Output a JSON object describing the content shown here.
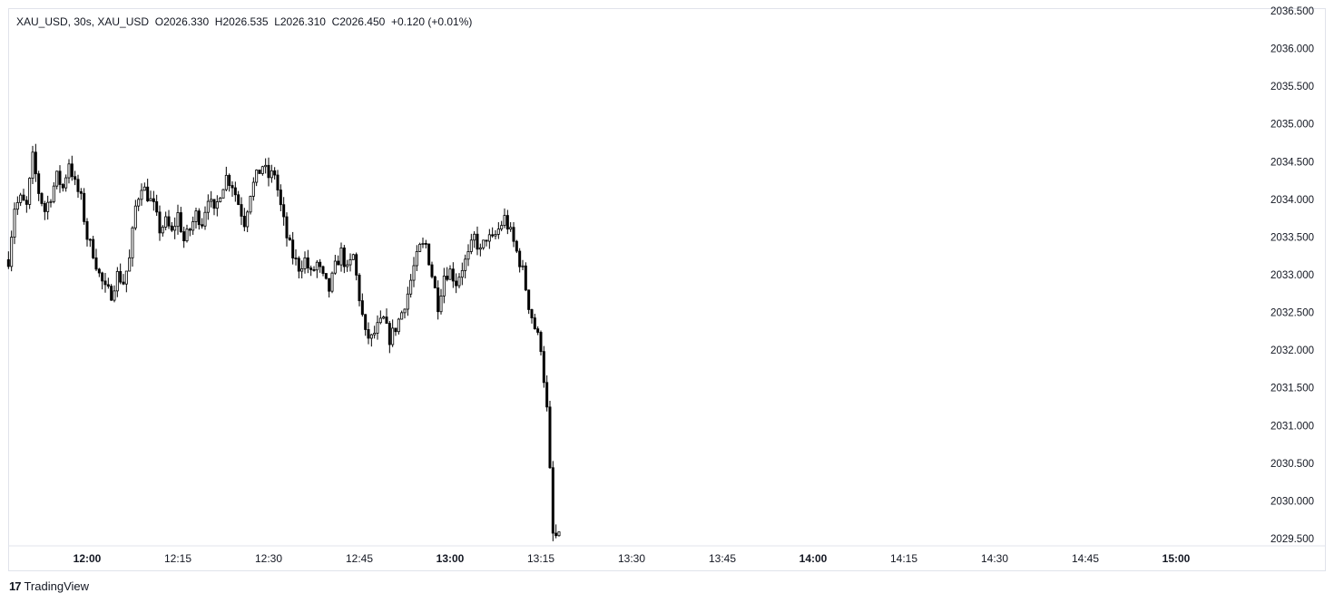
{
  "legend": {
    "symbol": "XAU_USD, 30s, XAU_USD",
    "open": "O2026.330",
    "high": "H2026.535",
    "low": "L2026.310",
    "close": "C2026.450",
    "change": "+0.120 (+0.01%)"
  },
  "brand": {
    "logo": "17",
    "name": "TradingView"
  },
  "chart_data": {
    "type": "candlestick",
    "symbol": "XAU_USD",
    "interval": "30s",
    "price_ticks": [
      "2036.500",
      "2036.000",
      "2035.500",
      "2035.000",
      "2034.500",
      "2034.000",
      "2033.500",
      "2033.000",
      "2032.500",
      "2032.000",
      "2031.500",
      "2031.000",
      "2030.500",
      "2030.000",
      "2029.500"
    ],
    "time_ticks": [
      {
        "label": "12:00",
        "bold": true
      },
      {
        "label": "12:15",
        "bold": false
      },
      {
        "label": "12:30",
        "bold": false
      },
      {
        "label": "12:45",
        "bold": false
      },
      {
        "label": "13:00",
        "bold": true
      },
      {
        "label": "13:15",
        "bold": false
      },
      {
        "label": "13:30",
        "bold": false
      },
      {
        "label": "13:45",
        "bold": false
      },
      {
        "label": "14:00",
        "bold": true
      },
      {
        "label": "14:15",
        "bold": false
      },
      {
        "label": "14:30",
        "bold": false
      },
      {
        "label": "14:45",
        "bold": false
      },
      {
        "label": "15:00",
        "bold": true
      }
    ],
    "ylim": [
      2029.4,
      2036.6
    ],
    "x_start": "11:47",
    "x_end": "15:16",
    "price_path": [
      [
        "11:47",
        2033.2
      ],
      [
        "11:48",
        2033.9
      ],
      [
        "11:49",
        2034.0
      ],
      [
        "11:50",
        2033.9
      ],
      [
        "11:51",
        2034.55
      ],
      [
        "11:52",
        2034.1
      ],
      [
        "11:53",
        2033.85
      ],
      [
        "11:54",
        2034.05
      ],
      [
        "11:55",
        2034.3
      ],
      [
        "11:56",
        2034.15
      ],
      [
        "11:57",
        2034.5
      ],
      [
        "11:58",
        2034.2
      ],
      [
        "11:59",
        2034.0
      ],
      [
        "12:00",
        2033.5
      ],
      [
        "12:01",
        2033.3
      ],
      [
        "12:02",
        2033.0
      ],
      [
        "12:03",
        2032.8
      ],
      [
        "12:04",
        2032.75
      ],
      [
        "12:05",
        2033.0
      ],
      [
        "12:06",
        2032.9
      ],
      [
        "12:07",
        2033.2
      ],
      [
        "12:08",
        2033.9
      ],
      [
        "12:09",
        2034.2
      ],
      [
        "12:10",
        2034.05
      ],
      [
        "12:11",
        2033.9
      ],
      [
        "12:12",
        2033.6
      ],
      [
        "12:13",
        2033.7
      ],
      [
        "12:14",
        2033.55
      ],
      [
        "12:15",
        2033.8
      ],
      [
        "12:16",
        2033.45
      ],
      [
        "12:17",
        2033.6
      ],
      [
        "12:18",
        2033.8
      ],
      [
        "12:19",
        2033.7
      ],
      [
        "12:20",
        2034.05
      ],
      [
        "12:21",
        2033.8
      ],
      [
        "12:22",
        2034.1
      ],
      [
        "12:23",
        2034.3
      ],
      [
        "12:24",
        2034.2
      ],
      [
        "12:25",
        2033.95
      ],
      [
        "12:26",
        2033.7
      ],
      [
        "12:27",
        2034.1
      ],
      [
        "12:28",
        2034.3
      ],
      [
        "12:29",
        2034.45
      ],
      [
        "12:30",
        2034.3
      ],
      [
        "12:31",
        2034.35
      ],
      [
        "12:32",
        2033.9
      ],
      [
        "12:33",
        2033.5
      ],
      [
        "12:34",
        2033.25
      ],
      [
        "12:35",
        2033.1
      ],
      [
        "12:36",
        2033.2
      ],
      [
        "12:37",
        2033.0
      ],
      [
        "12:38",
        2033.15
      ],
      [
        "12:39",
        2032.95
      ],
      [
        "12:40",
        2032.8
      ],
      [
        "12:41",
        2033.1
      ],
      [
        "12:42",
        2033.3
      ],
      [
        "12:43",
        2033.05
      ],
      [
        "12:44",
        2033.25
      ],
      [
        "12:45",
        2032.7
      ],
      [
        "12:46",
        2032.2
      ],
      [
        "12:47",
        2032.15
      ],
      [
        "12:48",
        2032.3
      ],
      [
        "12:49",
        2032.4
      ],
      [
        "12:50",
        2032.15
      ],
      [
        "12:51",
        2032.3
      ],
      [
        "12:52",
        2032.5
      ],
      [
        "12:53",
        2032.75
      ],
      [
        "12:54",
        2033.1
      ],
      [
        "12:55",
        2033.35
      ],
      [
        "12:56",
        2033.4
      ],
      [
        "12:57",
        2033.0
      ],
      [
        "12:58",
        2032.6
      ],
      [
        "12:59",
        2033.0
      ],
      [
        "13:00",
        2033.05
      ],
      [
        "13:01",
        2032.9
      ],
      [
        "13:02",
        2033.1
      ],
      [
        "13:03",
        2033.25
      ],
      [
        "13:04",
        2033.5
      ],
      [
        "13:05",
        2033.3
      ],
      [
        "13:06",
        2033.5
      ],
      [
        "13:07",
        2033.45
      ],
      [
        "13:08",
        2033.6
      ],
      [
        "13:09",
        2033.75
      ],
      [
        "13:10",
        2033.55
      ],
      [
        "13:11",
        2033.3
      ],
      [
        "13:12",
        2033.05
      ],
      [
        "13:13",
        2032.6
      ],
      [
        "13:14",
        2032.3
      ],
      [
        "13:15",
        2032.05
      ],
      [
        "13:16",
        2031.2
      ],
      [
        "13:17",
        2029.55
      ],
      [
        "13:18",
        2029.5
      ]
    ]
  }
}
